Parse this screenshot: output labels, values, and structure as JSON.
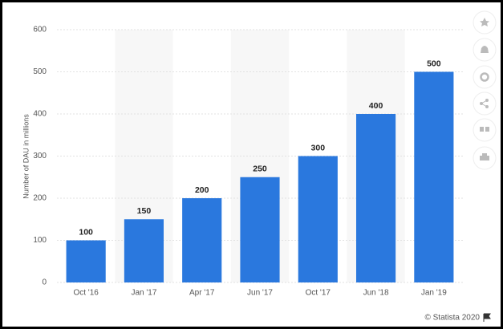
{
  "chart_data": {
    "type": "bar",
    "y_label": "Number of DAU in millions",
    "categories": [
      "Oct '16",
      "Jan '17",
      "Apr '17",
      "Jun '17",
      "Oct '17",
      "Jun '18",
      "Jan '19"
    ],
    "values": [
      100,
      150,
      200,
      250,
      300,
      400,
      500
    ],
    "color": "#2a78de",
    "ylim": [
      0,
      600
    ],
    "yticks": [
      0,
      100,
      200,
      300,
      400,
      500,
      600
    ],
    "grid": true,
    "credit": "© Statista 2020"
  }
}
